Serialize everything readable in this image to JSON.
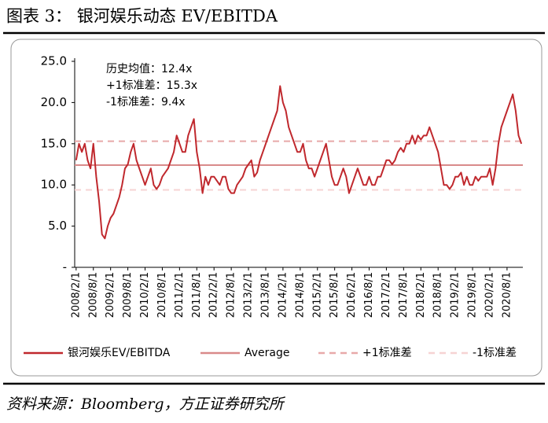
{
  "chart_data": {
    "type": "line",
    "title": "图表 3： 银河娱乐动态 EV/EBITDA",
    "source": "资料来源：Bloomberg，方正证券研究所",
    "annotations": [
      "历史均值：12.4x",
      "+1标准差：15.3x",
      "-1标准差：9.4x"
    ],
    "categories": [
      "2008/2/1",
      null,
      null,
      null,
      null,
      null,
      "2008/8/1",
      null,
      null,
      null,
      null,
      null,
      "2009/2/1",
      null,
      null,
      null,
      null,
      null,
      "2009/8/1",
      null,
      null,
      null,
      null,
      null,
      "2010/2/1",
      null,
      null,
      null,
      null,
      null,
      "2010/8/1",
      null,
      null,
      null,
      null,
      null,
      "2011/2/1",
      null,
      null,
      null,
      null,
      null,
      "2011/8/1",
      null,
      null,
      null,
      null,
      null,
      "2012/2/1",
      null,
      null,
      null,
      null,
      null,
      "2012/8/1",
      null,
      null,
      null,
      null,
      null,
      "2013/2/1",
      null,
      null,
      null,
      null,
      null,
      "2013/8/1",
      null,
      null,
      null,
      null,
      null,
      "2014/2/1",
      null,
      null,
      null,
      null,
      null,
      "2014/8/1",
      null,
      null,
      null,
      null,
      null,
      "2015/2/1",
      null,
      null,
      null,
      null,
      null,
      "2015/8/1",
      null,
      null,
      null,
      null,
      null,
      "2016/2/1",
      null,
      null,
      null,
      null,
      null,
      "2016/8/1",
      null,
      null,
      null,
      null,
      null,
      "2017/2/1",
      null,
      null,
      null,
      null,
      null,
      "2017/8/1",
      null,
      null,
      null,
      null,
      null,
      "2018/2/1",
      null,
      null,
      null,
      null,
      null,
      "2018/8/1",
      null,
      null,
      null,
      null,
      null,
      "2019/2/1",
      null,
      null,
      null,
      null,
      null,
      "2019/8/1",
      null,
      null,
      null,
      null,
      null,
      "2020/2/1",
      null,
      null,
      null,
      null,
      null,
      "2020/8/1",
      null,
      null,
      null,
      null,
      null
    ],
    "series": [
      {
        "name": "银河娱乐EV/EBITDA",
        "color": "#c0282d",
        "values": [
          13,
          15,
          14,
          15,
          13,
          12,
          15,
          11,
          8,
          4,
          3.5,
          5,
          6,
          6.5,
          7.5,
          8.5,
          10,
          12,
          12.5,
          14,
          15,
          13,
          12,
          11,
          10,
          11,
          12,
          10,
          9.5,
          10,
          11,
          11.5,
          12,
          13,
          14,
          16,
          15,
          14,
          14,
          16,
          17,
          18,
          14,
          12,
          9,
          11,
          10,
          11,
          11,
          10.5,
          10,
          11,
          11,
          9.5,
          9,
          9,
          10,
          10.5,
          11,
          12,
          12.5,
          13,
          11,
          11.5,
          13,
          14,
          15,
          16,
          17,
          18,
          19,
          22,
          20,
          19,
          17,
          16,
          15,
          14,
          14,
          15,
          13,
          12,
          12,
          11,
          12,
          13,
          14,
          15,
          13,
          11,
          10,
          10,
          11,
          12,
          11,
          9,
          10,
          11,
          12,
          11,
          10,
          10,
          11,
          10,
          10,
          11,
          11,
          12,
          13,
          13,
          12.5,
          13,
          14,
          14.5,
          14,
          15,
          15,
          16,
          15,
          16,
          15.5,
          16,
          16,
          17,
          16,
          15,
          14,
          12,
          10,
          10,
          9.5,
          10,
          11,
          11,
          11.5,
          10,
          11,
          10,
          10,
          11,
          10.5,
          11,
          11,
          11,
          12,
          10,
          12,
          15,
          17,
          18,
          19,
          20,
          21,
          19,
          16,
          15
        ]
      }
    ],
    "reference_lines": [
      {
        "name": "Average",
        "value": 12.4,
        "color": "#d98a8a",
        "dashed": false
      },
      {
        "name": "+1标准差",
        "value": 15.3,
        "color": "#e8a9a9",
        "dashed": true
      },
      {
        "name": "-1标准差",
        "value": 9.4,
        "color": "#f6d3d3",
        "dashed": true
      }
    ],
    "ylim": [
      0,
      25
    ],
    "yticks": [
      {
        "value": 0,
        "label": "-"
      },
      {
        "value": 5,
        "label": "5.0"
      },
      {
        "value": 10,
        "label": "10.0"
      },
      {
        "value": 15,
        "label": "15.0"
      },
      {
        "value": 20,
        "label": "20.0"
      },
      {
        "value": 25,
        "label": "25.0"
      }
    ],
    "grid": false
  }
}
